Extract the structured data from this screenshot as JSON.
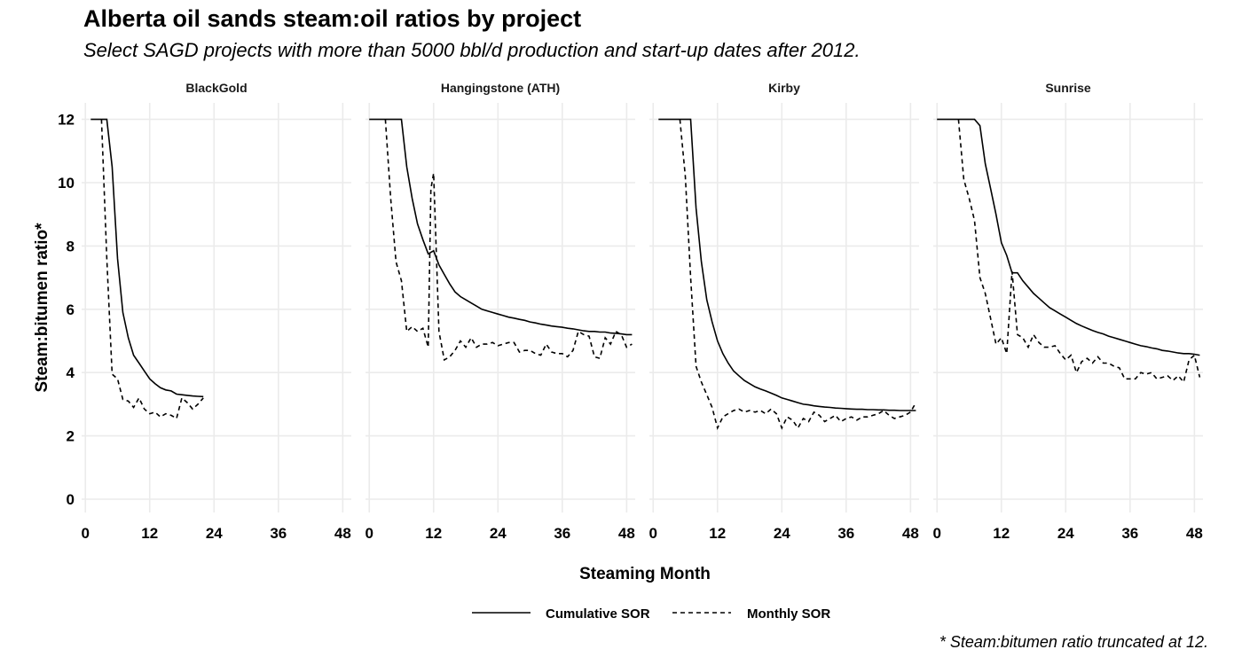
{
  "title": "Alberta oil sands steam:oil ratios by project",
  "subtitle": "Select SAGD projects with more than 5000 bbl/d production and start-up dates after 2012.",
  "caption": "* Steam:bitumen ratio truncated at 12.",
  "chart_data": {
    "type": "line",
    "xlabel": "Steaming Month",
    "ylabel": "Steam:bitumen ratio*",
    "xlim": [
      0,
      49
    ],
    "ylim": [
      0,
      12
    ],
    "x_ticks": [
      0,
      12,
      24,
      36,
      48
    ],
    "y_ticks": [
      0,
      2,
      4,
      6,
      8,
      10,
      12
    ],
    "grid": true,
    "legend_position": "bottom",
    "legend": [
      {
        "name": "Cumulative SOR",
        "style": "solid"
      },
      {
        "name": "Monthly SOR",
        "style": "dashed"
      }
    ],
    "panels": [
      {
        "name": "BlackGold",
        "series": [
          {
            "name": "Cumulative SOR",
            "x": [
              1,
              2,
              3,
              4,
              5,
              6,
              7,
              8,
              9,
              10,
              11,
              12,
              13,
              14,
              15,
              16,
              17,
              18,
              19,
              20,
              21,
              22
            ],
            "y": [
              12,
              12,
              12,
              12,
              10.5,
              7.6,
              5.9,
              5.1,
              4.55,
              4.3,
              4.05,
              3.8,
              3.65,
              3.52,
              3.45,
              3.42,
              3.32,
              3.3,
              3.28,
              3.26,
              3.25,
              3.24
            ]
          },
          {
            "name": "Monthly SOR",
            "x": [
              3,
              4,
              5,
              6,
              7,
              8,
              9,
              10,
              11,
              12,
              13,
              14,
              15,
              16,
              17,
              18,
              19,
              20,
              21,
              22
            ],
            "y": [
              12,
              7.6,
              3.95,
              3.8,
              3.15,
              3.1,
              2.9,
              3.2,
              2.85,
              2.7,
              2.75,
              2.6,
              2.7,
              2.65,
              2.55,
              3.2,
              3.05,
              2.85,
              3.0,
              3.2
            ]
          }
        ]
      },
      {
        "name": "Hangingstone (ATH)",
        "series": [
          {
            "name": "Cumulative SOR",
            "x": [
              0,
              1,
              2,
              3,
              4,
              5,
              6,
              7,
              8,
              9,
              10,
              11,
              12,
              13,
              14,
              15,
              16,
              17,
              18,
              19,
              20,
              21,
              22,
              23,
              24,
              25,
              26,
              27,
              28,
              29,
              30,
              31,
              32,
              33,
              34,
              35,
              36,
              37,
              38,
              39,
              40,
              41,
              42,
              43,
              44,
              45,
              46,
              47,
              48,
              49
            ],
            "y": [
              12,
              12,
              12,
              12,
              12,
              12,
              12,
              10.5,
              9.5,
              8.7,
              8.2,
              7.75,
              7.85,
              7.4,
              7.1,
              6.8,
              6.55,
              6.4,
              6.3,
              6.2,
              6.1,
              6.0,
              5.95,
              5.9,
              5.85,
              5.8,
              5.75,
              5.72,
              5.68,
              5.65,
              5.6,
              5.57,
              5.53,
              5.5,
              5.47,
              5.45,
              5.43,
              5.4,
              5.38,
              5.35,
              5.32,
              5.3,
              5.3,
              5.28,
              5.28,
              5.25,
              5.24,
              5.22,
              5.2,
              5.2
            ]
          },
          {
            "name": "Monthly SOR",
            "x": [
              3,
              4,
              5,
              6,
              7,
              8,
              9,
              10,
              11,
              11.5,
              12,
              13,
              14,
              15,
              16,
              17,
              18,
              19,
              20,
              21,
              22,
              23,
              24,
              25,
              26,
              27,
              28,
              29,
              30,
              31,
              32,
              33,
              34,
              35,
              36,
              37,
              38,
              39,
              40,
              41,
              42,
              43,
              44,
              45,
              46,
              47,
              48,
              49
            ],
            "y": [
              12,
              9.5,
              7.5,
              6.9,
              5.3,
              5.45,
              5.3,
              5.4,
              4.8,
              9.8,
              10.3,
              5.3,
              4.4,
              4.5,
              4.7,
              5.0,
              4.8,
              5.1,
              4.8,
              4.9,
              4.9,
              4.95,
              4.85,
              4.9,
              4.95,
              4.95,
              4.65,
              4.7,
              4.7,
              4.6,
              4.55,
              4.9,
              4.65,
              4.6,
              4.6,
              4.5,
              4.7,
              5.3,
              5.2,
              5.15,
              4.5,
              4.45,
              5.1,
              4.9,
              5.3,
              5.2,
              4.8,
              4.9
            ]
          }
        ]
      },
      {
        "name": "Kirby",
        "series": [
          {
            "name": "Cumulative SOR",
            "x": [
              1,
              2,
              3,
              4,
              5,
              6,
              7,
              8,
              9,
              10,
              11,
              12,
              13,
              14,
              15,
              16,
              17,
              18,
              19,
              20,
              21,
              22,
              23,
              24,
              25,
              26,
              27,
              28,
              29,
              30,
              31,
              32,
              33,
              34,
              35,
              36,
              37,
              38,
              39,
              40,
              41,
              42,
              43,
              44,
              45,
              46,
              47,
              48,
              49
            ],
            "y": [
              12,
              12,
              12,
              12,
              12,
              12,
              12,
              9.2,
              7.5,
              6.3,
              5.6,
              5.0,
              4.6,
              4.3,
              4.05,
              3.9,
              3.75,
              3.65,
              3.55,
              3.48,
              3.42,
              3.35,
              3.28,
              3.2,
              3.15,
              3.1,
              3.05,
              3.0,
              2.98,
              2.95,
              2.93,
              2.91,
              2.9,
              2.88,
              2.87,
              2.86,
              2.85,
              2.84,
              2.84,
              2.83,
              2.83,
              2.82,
              2.82,
              2.81,
              2.81,
              2.8,
              2.8,
              2.8,
              2.8
            ]
          },
          {
            "name": "Monthly SOR",
            "x": [
              5,
              6,
              7,
              8,
              9,
              10,
              11,
              12,
              13,
              14,
              15,
              16,
              17,
              18,
              19,
              20,
              21,
              22,
              23,
              24,
              25,
              26,
              27,
              28,
              29,
              30,
              31,
              32,
              33,
              34,
              35,
              36,
              37,
              38,
              39,
              40,
              41,
              42,
              43,
              44,
              45,
              46,
              47,
              48,
              49
            ],
            "y": [
              12,
              10.2,
              7.0,
              4.2,
              3.7,
              3.3,
              2.9,
              2.25,
              2.6,
              2.7,
              2.8,
              2.85,
              2.75,
              2.8,
              2.75,
              2.8,
              2.7,
              2.85,
              2.7,
              2.25,
              2.6,
              2.5,
              2.25,
              2.55,
              2.45,
              2.75,
              2.65,
              2.45,
              2.55,
              2.65,
              2.45,
              2.55,
              2.6,
              2.5,
              2.6,
              2.6,
              2.65,
              2.7,
              2.8,
              2.65,
              2.55,
              2.6,
              2.65,
              2.75,
              3.05
            ]
          }
        ]
      },
      {
        "name": "Sunrise",
        "series": [
          {
            "name": "Cumulative SOR",
            "x": [
              0,
              1,
              2,
              3,
              4,
              5,
              6,
              7,
              8,
              9,
              10,
              11,
              12,
              13,
              14,
              15,
              16,
              17,
              18,
              19,
              20,
              21,
              22,
              23,
              24,
              25,
              26,
              27,
              28,
              29,
              30,
              31,
              32,
              33,
              34,
              35,
              36,
              37,
              38,
              39,
              40,
              41,
              42,
              43,
              44,
              45,
              46,
              47,
              48,
              49
            ],
            "y": [
              12,
              12,
              12,
              12,
              12,
              12,
              12,
              12,
              11.8,
              10.6,
              9.8,
              9.0,
              8.1,
              7.7,
              7.15,
              7.15,
              6.9,
              6.7,
              6.5,
              6.35,
              6.2,
              6.05,
              5.95,
              5.85,
              5.75,
              5.65,
              5.55,
              5.47,
              5.4,
              5.33,
              5.27,
              5.22,
              5.15,
              5.1,
              5.05,
              5.0,
              4.95,
              4.9,
              4.85,
              4.82,
              4.78,
              4.75,
              4.7,
              4.68,
              4.65,
              4.62,
              4.6,
              4.6,
              4.58,
              4.55
            ]
          },
          {
            "name": "Monthly SOR",
            "x": [
              4,
              5,
              6,
              7,
              8,
              9,
              10,
              11,
              12,
              13,
              14,
              15,
              16,
              17,
              18,
              19,
              20,
              21,
              22,
              23,
              24,
              25,
              26,
              27,
              28,
              29,
              30,
              31,
              32,
              33,
              34,
              35,
              36,
              37,
              38,
              39,
              40,
              41,
              42,
              43,
              44,
              45,
              46,
              47,
              48,
              49
            ],
            "y": [
              12,
              10.1,
              9.5,
              8.8,
              7.0,
              6.5,
              5.7,
              4.9,
              5.1,
              4.6,
              7.2,
              5.2,
              5.1,
              4.8,
              5.2,
              4.95,
              4.8,
              4.8,
              4.85,
              4.6,
              4.4,
              4.55,
              4.0,
              4.35,
              4.45,
              4.3,
              4.5,
              4.3,
              4.3,
              4.2,
              4.15,
              3.8,
              3.8,
              3.8,
              4.0,
              3.95,
              4.0,
              3.8,
              3.85,
              3.9,
              3.75,
              3.9,
              3.7,
              4.4,
              4.55,
              3.85
            ]
          }
        ]
      }
    ]
  }
}
